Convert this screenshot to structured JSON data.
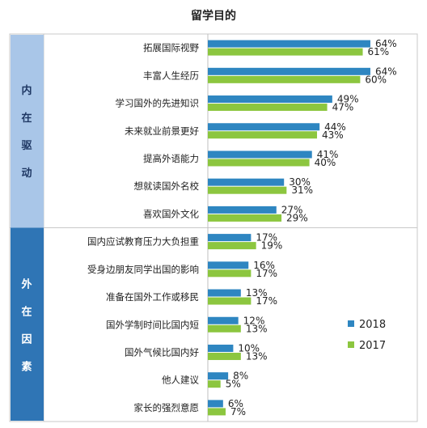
{
  "chart_data": {
    "type": "bar",
    "orientation": "horizontal",
    "title": "留学目的",
    "groups": [
      {
        "label": "内在驱动",
        "color": "#a9c6e8",
        "categories": [
          "拓展国际视野",
          "丰富人生经历",
          "学习国外的先进知识",
          "未来就业前景更好",
          "提高外语能力",
          "想就读国外名校",
          "喜欢国外文化"
        ]
      },
      {
        "label": "外在因素",
        "color": "#2f75b5",
        "categories": [
          "国内应试教育压力大负担重",
          "受身边朋友同学出国的影响",
          "准备在国外工作或移民",
          "国外学制时间比国内短",
          "国外气候比国内好",
          "他人建议",
          "家长的强烈意愿"
        ]
      }
    ],
    "categories": [
      "拓展国际视野",
      "丰富人生经历",
      "学习国外的先进知识",
      "未来就业前景更好",
      "提高外语能力",
      "想就读国外名校",
      "喜欢国外文化",
      "国内应试教育压力大负担重",
      "受身边朋友同学出国的影响",
      "准备在国外工作或移民",
      "国外学制时间比国内短",
      "国外气候比国内好",
      "他人建议",
      "家长的强烈意愿"
    ],
    "series": [
      {
        "name": "2018",
        "color": "#2e86c1",
        "values": [
          64,
          64,
          49,
          44,
          41,
          30,
          27,
          17,
          16,
          13,
          12,
          10,
          8,
          6
        ]
      },
      {
        "name": "2017",
        "color": "#8cc63f",
        "values": [
          61,
          60,
          47,
          43,
          40,
          31,
          29,
          19,
          17,
          17,
          13,
          13,
          5,
          7
        ]
      }
    ],
    "value_suffix": "%",
    "xlim": [
      0,
      75
    ],
    "legend_position": "right",
    "grid": false
  }
}
